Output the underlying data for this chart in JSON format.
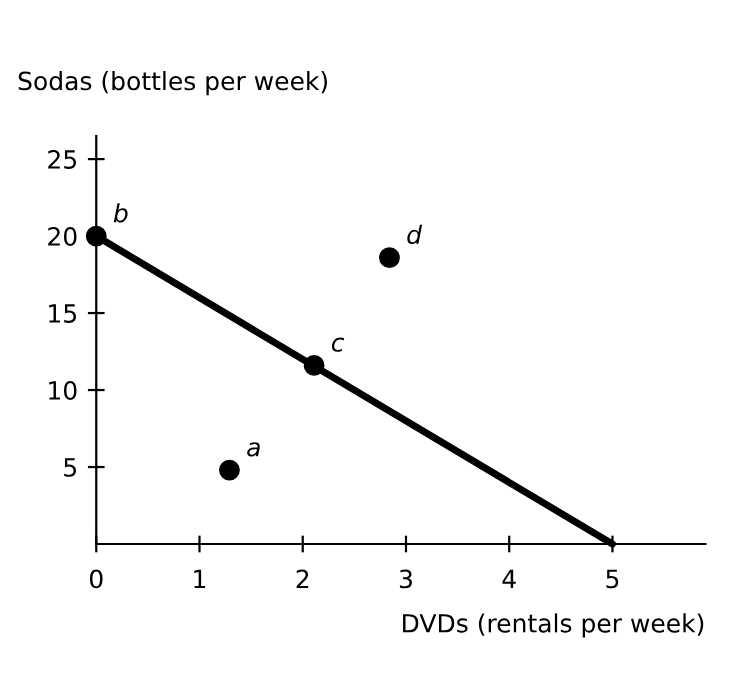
{
  "chart_data": {
    "type": "scatter",
    "xlabel": "DVDs (rentals per week)",
    "ylabel": "Sodas (bottles per week)",
    "xlim": [
      0,
      5.9
    ],
    "ylim": [
      0,
      26.5
    ],
    "xticks": [
      0,
      1,
      2,
      3,
      4,
      5
    ],
    "yticks": [
      5,
      10,
      15,
      20,
      25
    ],
    "grid": false,
    "legend": false,
    "marker": "circle",
    "series": [
      {
        "type": "line",
        "color": "#000000",
        "x": [
          0,
          5
        ],
        "values": [
          20,
          0
        ],
        "marker": "none",
        "line_style": "solid"
      },
      {
        "color": "#000000",
        "x": [
          1.29,
          0,
          2.11,
          2.84
        ],
        "values": [
          4.8,
          20,
          11.6,
          18.6
        ]
      }
    ],
    "annotations": [
      {
        "text": "a",
        "x": 1.29,
        "y": 4.8
      },
      {
        "text": "b",
        "x": 0,
        "y": 20
      },
      {
        "text": "c",
        "x": 2.11,
        "y": 11.6
      },
      {
        "text": "d",
        "x": 2.84,
        "y": 18.6
      }
    ]
  }
}
